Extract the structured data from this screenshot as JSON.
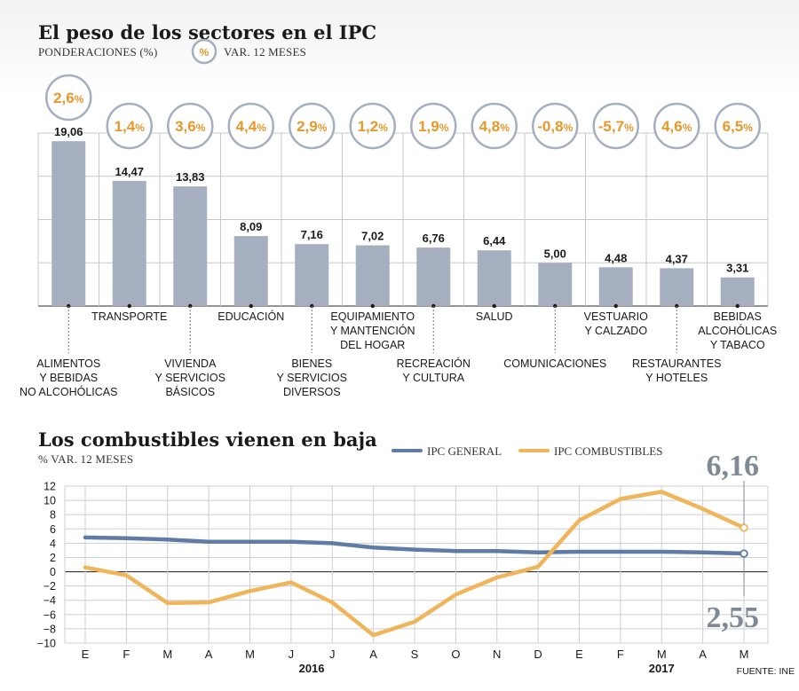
{
  "chart_data": [
    {
      "type": "bar",
      "title": "El peso de los sectores en el IPC",
      "subtitle": "PONDERACIONES (%)",
      "legend_badge": "%",
      "legend_label": "VAR. 12 MESES",
      "categories": [
        [
          "ALIMENTOS",
          "Y BEBIDAS",
          "NO ALCOHÓLICAS"
        ],
        [
          "TRANSPORTE"
        ],
        [
          "VIVIENDA",
          "Y SERVICIOS",
          "BÁSICOS"
        ],
        [
          "EDUCACIÓN"
        ],
        [
          "BIENES",
          "Y SERVICIOS",
          "DIVERSOS"
        ],
        [
          "EQUIPAMIENTO",
          "Y MANTENCIÓN",
          "DEL HOGAR"
        ],
        [
          "RECREACIÓN",
          "Y CULTURA"
        ],
        [
          "SALUD"
        ],
        [
          "COMUNICACIONES"
        ],
        [
          "VESTUARIO",
          "Y CALZADO"
        ],
        [
          "RESTAURANTES",
          "Y HOTELES"
        ],
        [
          "BEBIDAS",
          "ALCOHÓLICAS",
          "Y TABACO"
        ]
      ],
      "values": [
        19.06,
        14.47,
        13.83,
        8.09,
        7.16,
        7.02,
        6.76,
        6.44,
        5.0,
        4.48,
        4.37,
        3.31
      ],
      "value_labels": [
        "19,06",
        "14,47",
        "13,83",
        "8,09",
        "7,16",
        "7,02",
        "6,76",
        "6,44",
        "5,00",
        "4,48",
        "4,37",
        "3,31"
      ],
      "var_12m_labels": [
        "2,6",
        "1,4",
        "3,6",
        "4,4",
        "2,9",
        "1,2",
        "1,9",
        "4,8",
        "-0,8",
        "-5,7",
        "4,6",
        "6,5"
      ],
      "ylim": [
        0,
        20
      ],
      "grid": true,
      "colors": {
        "bar": "#a6afbf",
        "badge_text": "#e8972b",
        "badge_border": "#a6afbf",
        "grid": "#c8c8c8"
      }
    },
    {
      "type": "line",
      "title": "Los combustibles vienen en baja",
      "subtitle": "% VAR. 12 MESES",
      "x": [
        "E",
        "F",
        "M",
        "A",
        "M",
        "J",
        "J",
        "A",
        "S",
        "O",
        "N",
        "D",
        "E",
        "F",
        "M",
        "A",
        "M"
      ],
      "x_years": [
        {
          "label": "2016",
          "at": 5.5
        },
        {
          "label": "2017",
          "at": 14
        }
      ],
      "yticks": [
        "12",
        "10",
        "8",
        "6",
        "4",
        "2",
        "0",
        "−2",
        "−4",
        "−6",
        "−8",
        "−10"
      ],
      "ylim": [
        -10,
        12
      ],
      "grid": true,
      "legend_position": "top-right",
      "series": [
        {
          "name": "IPC GENERAL",
          "color": "#5e7ca6",
          "values": [
            4.8,
            4.7,
            4.5,
            4.2,
            4.2,
            4.2,
            4.0,
            3.4,
            3.1,
            2.9,
            2.9,
            2.7,
            2.8,
            2.8,
            2.8,
            2.7,
            2.55
          ],
          "end_label": "2,55"
        },
        {
          "name": "IPC COMBUSTIBLES",
          "color": "#f0b45a",
          "values": [
            0.6,
            -0.5,
            -4.4,
            -4.3,
            -2.7,
            -1.5,
            -4.3,
            -8.9,
            -7.0,
            -3.2,
            -0.8,
            0.7,
            7.2,
            10.2,
            11.2,
            8.8,
            6.16
          ],
          "end_label": "6,16"
        }
      ],
      "source": "FUENTE: INE"
    }
  ]
}
